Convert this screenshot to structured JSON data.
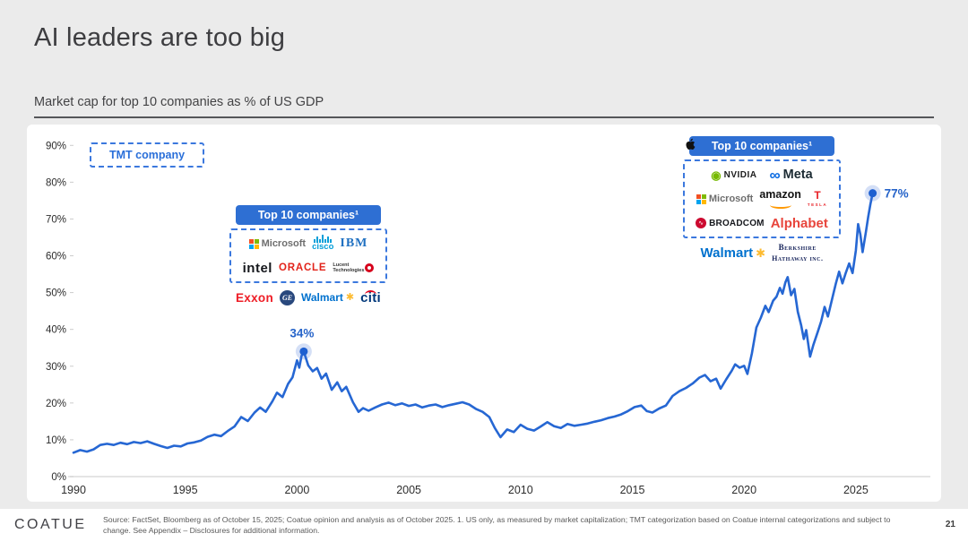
{
  "slide": {
    "title": "AI leaders are too big",
    "subtitle": "Market cap for top 10 companies as % of US GDP",
    "brand": "COATUE",
    "page_number": "21",
    "footnote": "Source: FactSet, Bloomberg as of October 15, 2025; Coatue opinion and analysis as of October 2025. 1. US only, as measured by market capitalization; TMT categorization based on Coatue internal categorizations and subject to change. See Appendix – Disclosures for additional information."
  },
  "colors": {
    "line_blue": "#2667d3",
    "callout_blue": "#2563c9",
    "header_box_blue": "#2e6fd3",
    "dashed_border_blue": "#3b78de",
    "slide_background": "#ebebeb",
    "panel_background": "#ffffff"
  },
  "annotations": {
    "tmt_legend": "TMT company",
    "group_2000": {
      "header": "Top 10 companies¹",
      "tmt_members": [
        "Microsoft",
        "Cisco",
        "IBM",
        "Intel",
        "Oracle",
        "Lucent Technologies"
      ],
      "other_members": [
        "Exxon",
        "GE",
        "Walmart",
        "Citi"
      ]
    },
    "group_2025": {
      "header": "Top 10 companies¹",
      "tmt_members": [
        "NVIDIA",
        "Apple",
        "Meta",
        "Microsoft",
        "Amazon",
        "Tesla",
        "Broadcom",
        "Alphabet"
      ],
      "other_members": [
        "Walmart",
        "Berkshire Hathaway Inc."
      ]
    }
  },
  "logos": {
    "microsoft": {
      "text": "Microsoft"
    },
    "cisco": {
      "text": "cisco"
    },
    "ibm": {
      "text": "IBM"
    },
    "intel": {
      "text": "intel"
    },
    "oracle": {
      "text": "ORACLE"
    },
    "lucent": {
      "text": "Lucent Technologies"
    },
    "exxon": {
      "text": "Exxon"
    },
    "ge": {
      "text": "GE"
    },
    "walmart": {
      "text": "Walmart"
    },
    "citi": {
      "text": "citi"
    },
    "nvidia": {
      "text": "NVIDIA"
    },
    "meta": {
      "text": "Meta"
    },
    "amazon": {
      "text": "amazon"
    },
    "tesla": {
      "text": "TESLA"
    },
    "broadcom": {
      "text": "BROADCOM"
    },
    "alphabet": {
      "text": "Alphabet"
    },
    "berkshire": {
      "line1": "Berkshire",
      "line2": "Hathaway inc."
    }
  },
  "chart_data": {
    "type": "line",
    "title": "Market cap for top 10 companies as % of US GDP",
    "xlabel": "",
    "ylabel": "",
    "xlim": [
      1989.5,
      2027
    ],
    "ylim": [
      0,
      90
    ],
    "grid": "baseline-only",
    "x_ticks": [
      {
        "value": 1990,
        "label": "1990"
      },
      {
        "value": 1995,
        "label": "1995"
      },
      {
        "value": 2000,
        "label": "2000"
      },
      {
        "value": 2005,
        "label": "2005"
      },
      {
        "value": 2010,
        "label": "2010"
      },
      {
        "value": 2015,
        "label": "2015"
      },
      {
        "value": 2020,
        "label": "2020"
      },
      {
        "value": 2025,
        "label": "2025"
      }
    ],
    "y_ticks": [
      {
        "value": 0,
        "label": "0%"
      },
      {
        "value": 10,
        "label": "10%"
      },
      {
        "value": 20,
        "label": "20%"
      },
      {
        "value": 30,
        "label": "30%"
      },
      {
        "value": 40,
        "label": "40%"
      },
      {
        "value": 50,
        "label": "50%"
      },
      {
        "value": 60,
        "label": "60%"
      },
      {
        "value": 70,
        "label": "70%"
      },
      {
        "value": 80,
        "label": "80%"
      },
      {
        "value": 90,
        "label": "90%"
      }
    ],
    "series": [
      {
        "name": "Top 10 companies market cap as % of US GDP",
        "points": [
          [
            1990.0,
            6.5
          ],
          [
            1990.3,
            7.2
          ],
          [
            1990.6,
            6.8
          ],
          [
            1990.9,
            7.4
          ],
          [
            1991.2,
            8.6
          ],
          [
            1991.5,
            8.9
          ],
          [
            1991.8,
            8.6
          ],
          [
            1992.1,
            9.2
          ],
          [
            1992.4,
            8.8
          ],
          [
            1992.7,
            9.4
          ],
          [
            1993.0,
            9.1
          ],
          [
            1993.3,
            9.6
          ],
          [
            1993.6,
            8.9
          ],
          [
            1993.9,
            8.3
          ],
          [
            1994.2,
            7.8
          ],
          [
            1994.5,
            8.4
          ],
          [
            1994.8,
            8.2
          ],
          [
            1995.1,
            9.0
          ],
          [
            1995.4,
            9.3
          ],
          [
            1995.7,
            9.8
          ],
          [
            1996.0,
            10.8
          ],
          [
            1996.3,
            11.4
          ],
          [
            1996.6,
            11.0
          ],
          [
            1996.9,
            12.4
          ],
          [
            1997.2,
            13.6
          ],
          [
            1997.5,
            16.2
          ],
          [
            1997.8,
            15.1
          ],
          [
            1998.1,
            17.4
          ],
          [
            1998.35,
            18.8
          ],
          [
            1998.6,
            17.6
          ],
          [
            1998.9,
            20.5
          ],
          [
            1999.1,
            22.8
          ],
          [
            1999.35,
            21.6
          ],
          [
            1999.6,
            25.2
          ],
          [
            1999.8,
            27.0
          ],
          [
            2000.0,
            31.6
          ],
          [
            2000.1,
            29.6
          ],
          [
            2000.2,
            32.8
          ],
          [
            2000.3,
            34.0
          ],
          [
            2000.5,
            30.2
          ],
          [
            2000.7,
            28.6
          ],
          [
            2000.9,
            29.5
          ],
          [
            2001.1,
            26.6
          ],
          [
            2001.3,
            28.0
          ],
          [
            2001.55,
            23.6
          ],
          [
            2001.8,
            25.6
          ],
          [
            2002.0,
            23.2
          ],
          [
            2002.2,
            24.4
          ],
          [
            2002.5,
            20.2
          ],
          [
            2002.75,
            17.6
          ],
          [
            2002.95,
            18.6
          ],
          [
            2003.2,
            17.9
          ],
          [
            2003.5,
            18.8
          ],
          [
            2003.8,
            19.6
          ],
          [
            2004.1,
            20.1
          ],
          [
            2004.4,
            19.4
          ],
          [
            2004.7,
            19.9
          ],
          [
            2005.0,
            19.2
          ],
          [
            2005.3,
            19.6
          ],
          [
            2005.6,
            18.8
          ],
          [
            2005.9,
            19.3
          ],
          [
            2006.2,
            19.6
          ],
          [
            2006.5,
            18.9
          ],
          [
            2006.8,
            19.4
          ],
          [
            2007.1,
            19.8
          ],
          [
            2007.4,
            20.2
          ],
          [
            2007.7,
            19.6
          ],
          [
            2008.0,
            18.4
          ],
          [
            2008.3,
            17.6
          ],
          [
            2008.6,
            16.2
          ],
          [
            2008.85,
            13.2
          ],
          [
            2009.1,
            10.7
          ],
          [
            2009.4,
            12.8
          ],
          [
            2009.7,
            12.1
          ],
          [
            2010.0,
            14.1
          ],
          [
            2010.3,
            13.0
          ],
          [
            2010.6,
            12.5
          ],
          [
            2010.9,
            13.6
          ],
          [
            2011.2,
            14.8
          ],
          [
            2011.5,
            13.7
          ],
          [
            2011.8,
            13.2
          ],
          [
            2012.1,
            14.3
          ],
          [
            2012.4,
            13.8
          ],
          [
            2012.7,
            14.1
          ],
          [
            2013.0,
            14.4
          ],
          [
            2013.3,
            14.9
          ],
          [
            2013.6,
            15.3
          ],
          [
            2013.9,
            15.9
          ],
          [
            2014.2,
            16.3
          ],
          [
            2014.5,
            16.9
          ],
          [
            2014.8,
            17.8
          ],
          [
            2015.1,
            18.9
          ],
          [
            2015.4,
            19.3
          ],
          [
            2015.65,
            17.8
          ],
          [
            2015.9,
            17.4
          ],
          [
            2016.2,
            18.5
          ],
          [
            2016.5,
            19.3
          ],
          [
            2016.8,
            21.9
          ],
          [
            2017.1,
            23.2
          ],
          [
            2017.4,
            24.1
          ],
          [
            2017.7,
            25.3
          ],
          [
            2018.0,
            26.9
          ],
          [
            2018.25,
            27.6
          ],
          [
            2018.5,
            25.9
          ],
          [
            2018.75,
            26.6
          ],
          [
            2018.95,
            23.9
          ],
          [
            2019.2,
            26.4
          ],
          [
            2019.45,
            28.8
          ],
          [
            2019.6,
            30.5
          ],
          [
            2019.8,
            29.6
          ],
          [
            2020.0,
            30.1
          ],
          [
            2020.15,
            27.9
          ],
          [
            2020.35,
            33.5
          ],
          [
            2020.55,
            40.5
          ],
          [
            2020.75,
            43.2
          ],
          [
            2020.95,
            46.4
          ],
          [
            2021.1,
            44.7
          ],
          [
            2021.3,
            47.8
          ],
          [
            2021.45,
            48.9
          ],
          [
            2021.6,
            51.3
          ],
          [
            2021.72,
            49.7
          ],
          [
            2021.85,
            52.8
          ],
          [
            2021.95,
            54.2
          ],
          [
            2022.1,
            49.3
          ],
          [
            2022.25,
            51.0
          ],
          [
            2022.4,
            44.8
          ],
          [
            2022.55,
            41.2
          ],
          [
            2022.67,
            37.4
          ],
          [
            2022.78,
            39.8
          ],
          [
            2022.95,
            32.6
          ],
          [
            2023.1,
            35.8
          ],
          [
            2023.3,
            39.4
          ],
          [
            2023.45,
            42.2
          ],
          [
            2023.6,
            46.1
          ],
          [
            2023.75,
            43.5
          ],
          [
            2023.95,
            48.6
          ],
          [
            2024.1,
            52.4
          ],
          [
            2024.25,
            55.7
          ],
          [
            2024.4,
            52.5
          ],
          [
            2024.55,
            55.4
          ],
          [
            2024.7,
            57.9
          ],
          [
            2024.85,
            55.3
          ],
          [
            2025.0,
            61.5
          ],
          [
            2025.1,
            68.6
          ],
          [
            2025.2,
            65.8
          ],
          [
            2025.3,
            61.0
          ],
          [
            2025.45,
            66.5
          ],
          [
            2025.55,
            70.5
          ],
          [
            2025.65,
            74.0
          ],
          [
            2025.75,
            77.0
          ]
        ]
      }
    ],
    "callouts": [
      {
        "year": 2000.3,
        "value": 34,
        "label": "34%",
        "label_pos": "top"
      },
      {
        "year": 2025.75,
        "value": 77,
        "label": "77%",
        "label_pos": "right"
      }
    ]
  }
}
